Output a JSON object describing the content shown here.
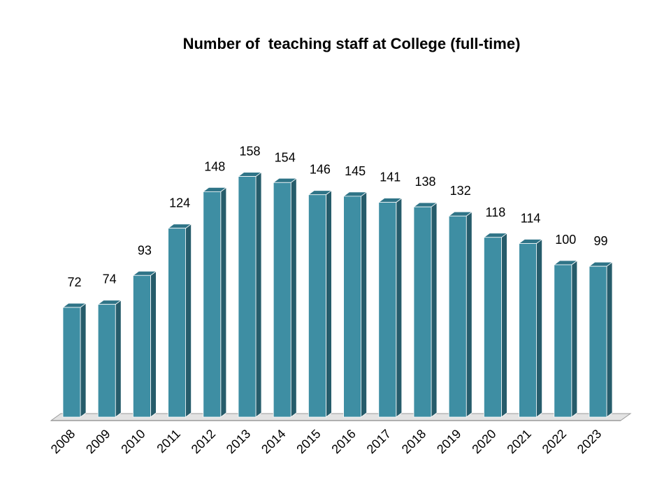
{
  "chart_data": {
    "type": "bar",
    "title": "Number of  teaching staff at College (full-time)",
    "xlabel": "",
    "ylabel": "",
    "categories": [
      "2008",
      "2009",
      "2010",
      "2011",
      "2012",
      "2013",
      "2014",
      "2015",
      "2016",
      "2017",
      "2018",
      "2019",
      "2020",
      "2021",
      "2022",
      "2023"
    ],
    "series": [
      {
        "values": [
          72,
          74,
          93,
          124,
          148,
          158,
          154,
          146,
          145,
          141,
          138,
          132,
          118,
          114,
          100,
          99
        ]
      }
    ],
    "ylim": [
      0,
      165
    ],
    "grid": false,
    "legend": "none",
    "data_labels": true,
    "style": "3d-column",
    "colors": {
      "bar_front": "#3e8ea3",
      "bar_side": "#265c6b",
      "bar_top": "#2f7487",
      "floor": "#e3e3e3",
      "floor_edge": "#9a9a9a"
    }
  }
}
